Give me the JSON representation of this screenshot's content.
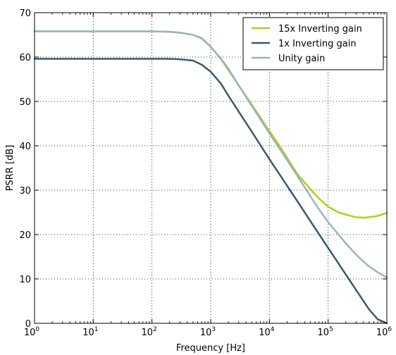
{
  "chart_data": {
    "type": "line",
    "title": "",
    "xlabel": "Frequency [Hz]",
    "ylabel": "PSRR [dB]",
    "xscale": "log",
    "xlim": [
      1,
      1000000
    ],
    "ylim": [
      0,
      70
    ],
    "grid": true,
    "legend_position": "top-right",
    "x_ticks": [
      {
        "value": 1,
        "base": "10",
        "exp": "0"
      },
      {
        "value": 10,
        "base": "10",
        "exp": "1"
      },
      {
        "value": 100,
        "base": "10",
        "exp": "2"
      },
      {
        "value": 1000,
        "base": "10",
        "exp": "3"
      },
      {
        "value": 10000,
        "base": "10",
        "exp": "4"
      },
      {
        "value": 100000,
        "base": "10",
        "exp": "5"
      },
      {
        "value": 1000000,
        "base": "10",
        "exp": "6"
      }
    ],
    "y_ticks": [
      0,
      10,
      20,
      30,
      40,
      50,
      60,
      70
    ],
    "x": [
      1,
      10,
      50,
      100,
      200,
      300,
      500,
      700,
      1000,
      1500,
      2000,
      3000,
      5000,
      7000,
      10000,
      15000,
      20000,
      30000,
      50000,
      70000,
      100000,
      150000,
      200000,
      300000,
      400000,
      500000,
      700000,
      1000000
    ],
    "series": [
      {
        "name": "15x Inverting gain",
        "color": "#b5cd14",
        "values": [
          65.8,
          65.8,
          65.8,
          65.8,
          65.7,
          65.5,
          65.0,
          64.3,
          62.4,
          59.5,
          57.1,
          53.6,
          49.3,
          46.4,
          43.3,
          39.9,
          37.3,
          33.6,
          30.2,
          28.1,
          26.3,
          25.0,
          24.5,
          23.9,
          23.8,
          23.9,
          24.2,
          24.9
        ]
      },
      {
        "name": "1x Inverting gain",
        "color": "#3b5a6f",
        "values": [
          59.6,
          59.6,
          59.6,
          59.6,
          59.6,
          59.5,
          59.2,
          58.3,
          56.7,
          54.0,
          51.3,
          47.7,
          43.2,
          40.2,
          37.0,
          33.5,
          31.0,
          27.5,
          23.0,
          20.1,
          17.0,
          13.5,
          11.0,
          7.5,
          5.0,
          3.1,
          0.9,
          0.0
        ]
      },
      {
        "name": "Unity gain",
        "color": "#98b4c8",
        "values": [
          65.8,
          65.8,
          65.8,
          65.8,
          65.7,
          65.5,
          65.0,
          64.2,
          62.3,
          59.6,
          57.4,
          53.6,
          49.0,
          46.0,
          42.8,
          39.3,
          36.8,
          33.2,
          28.6,
          25.7,
          22.8,
          20.0,
          18.0,
          15.5,
          13.9,
          12.8,
          11.5,
          10.3
        ]
      }
    ]
  }
}
